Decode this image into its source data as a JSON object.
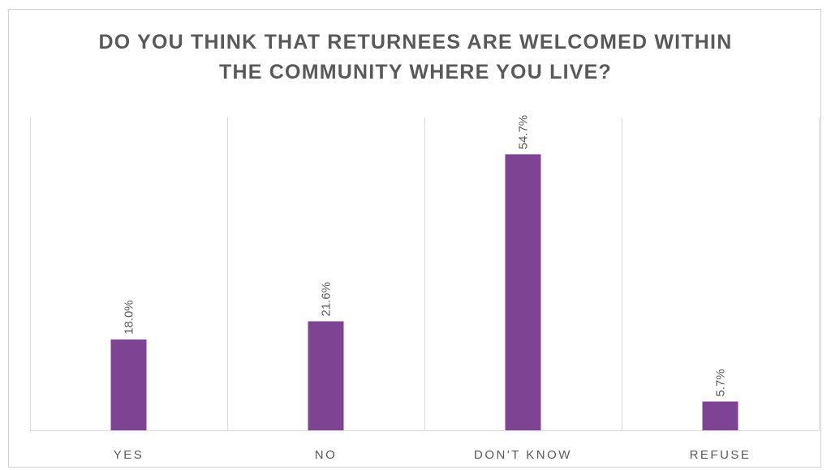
{
  "chart_data": {
    "type": "bar",
    "title_lines": [
      "DO YOU THINK THAT RETURNEES ARE WELCOMED WITHIN",
      "THE COMMUNITY WHERE YOU LIVE?"
    ],
    "categories": [
      "YES",
      "NO",
      "DON'T KNOW",
      "REFUSE"
    ],
    "values": [
      18.0,
      21.6,
      54.7,
      5.7
    ],
    "data_labels": [
      "18.0%",
      "21.6%",
      "54.7%",
      "5.7%"
    ],
    "unit": "%",
    "ylim": [
      0,
      60
    ],
    "bar_color": "#7F4393",
    "grid": "vertical category dividers",
    "legend": "none",
    "xlabel": "",
    "ylabel": ""
  }
}
